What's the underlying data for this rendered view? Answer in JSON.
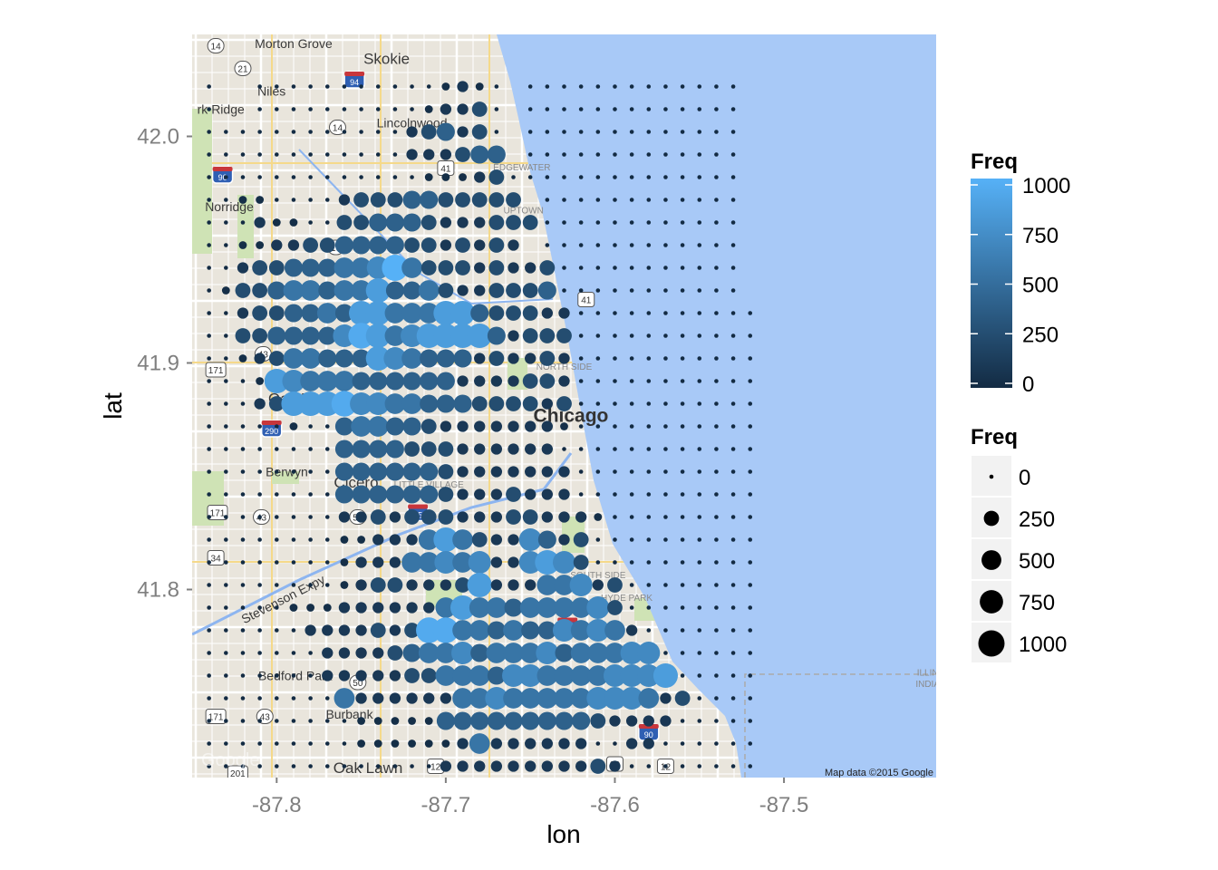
{
  "map": {
    "lon_range": [
      -87.85,
      -87.41
    ],
    "lat_range": [
      41.717,
      42.045
    ],
    "credit": "Map data ©2015 Google",
    "google_watermark": "Google",
    "places": [
      {
        "name": "Morton Grove",
        "lon": -87.79,
        "lat": 42.039,
        "class": "place"
      },
      {
        "name": "Skokie",
        "lon": -87.735,
        "lat": 42.032,
        "class": "place-big"
      },
      {
        "name": "Niles",
        "lon": -87.803,
        "lat": 42.018,
        "class": "place"
      },
      {
        "name": "rk Ridge",
        "lon": -87.833,
        "lat": 42.01,
        "class": "place"
      },
      {
        "name": "Lincolnwood",
        "lon": -87.72,
        "lat": 42.004,
        "class": "place"
      },
      {
        "name": "EDGEWATER",
        "lon": -87.655,
        "lat": 41.985,
        "class": "place-hood"
      },
      {
        "name": "Norridge",
        "lon": -87.828,
        "lat": 41.967,
        "class": "place"
      },
      {
        "name": "UPTOWN",
        "lon": -87.654,
        "lat": 41.966,
        "class": "place-hood"
      },
      {
        "name": "NORTH SIDE",
        "lon": -87.63,
        "lat": 41.897,
        "class": "place-hood"
      },
      {
        "name": "Oak Park",
        "lon": -87.786,
        "lat": 41.882,
        "class": "place-big"
      },
      {
        "name": "Chicago",
        "lon": -87.626,
        "lat": 41.874,
        "class": "place-city"
      },
      {
        "name": "Berwyn",
        "lon": -87.794,
        "lat": 41.85,
        "class": "place"
      },
      {
        "name": "Cicero",
        "lon": -87.753,
        "lat": 41.845,
        "class": "place-big"
      },
      {
        "name": "LITTLE VILLAGE",
        "lon": -87.71,
        "lat": 41.845,
        "class": "place-hood"
      },
      {
        "name": "SOUTH SIDE",
        "lon": -87.61,
        "lat": 41.805,
        "class": "place-hood"
      },
      {
        "name": "HYDE PARK",
        "lon": -87.593,
        "lat": 41.795,
        "class": "place-hood"
      },
      {
        "name": "Bedford Park",
        "lon": -87.789,
        "lat": 41.76,
        "class": "place"
      },
      {
        "name": "Burbank",
        "lon": -87.757,
        "lat": 41.743,
        "class": "place"
      },
      {
        "name": "Oak Lawn",
        "lon": -87.746,
        "lat": 41.719,
        "class": "place-big"
      },
      {
        "name": "Stevenson Expy",
        "lon": -87.795,
        "lat": 41.794,
        "class": "place",
        "rotate": -27
      },
      {
        "name": "ILLIN",
        "lon": -87.415,
        "lat": 41.762,
        "class": "place-hood"
      },
      {
        "name": "INDIA",
        "lon": -87.415,
        "lat": 41.757,
        "class": "place-hood"
      }
    ],
    "shields": [
      {
        "label": "14",
        "lon": -87.836,
        "lat": 42.04,
        "type": "state"
      },
      {
        "label": "21",
        "lon": -87.82,
        "lat": 42.03,
        "type": "state"
      },
      {
        "label": "94",
        "lon": -87.754,
        "lat": 42.025,
        "type": "interstate"
      },
      {
        "label": "14",
        "lon": -87.764,
        "lat": 42.004,
        "type": "state"
      },
      {
        "label": "41",
        "lon": -87.7,
        "lat": 41.986,
        "type": "us"
      },
      {
        "label": "90",
        "lon": -87.832,
        "lat": 41.983,
        "type": "interstate"
      },
      {
        "label": "19",
        "lon": -87.765,
        "lat": 41.951,
        "type": "state"
      },
      {
        "label": "41",
        "lon": -87.617,
        "lat": 41.928,
        "type": "us"
      },
      {
        "label": "43",
        "lon": -87.808,
        "lat": 41.904,
        "type": "state"
      },
      {
        "label": "171",
        "lon": -87.836,
        "lat": 41.897,
        "type": "us"
      },
      {
        "label": "290",
        "lon": -87.803,
        "lat": 41.871,
        "type": "interstate"
      },
      {
        "label": "171",
        "lon": -87.835,
        "lat": 41.834,
        "type": "us"
      },
      {
        "label": "43",
        "lon": -87.809,
        "lat": 41.832,
        "type": "state"
      },
      {
        "label": "50",
        "lon": -87.752,
        "lat": 41.832,
        "type": "state"
      },
      {
        "label": "55",
        "lon": -87.7165,
        "lat": 41.834,
        "type": "interstate"
      },
      {
        "label": "34",
        "lon": -87.836,
        "lat": 41.814,
        "type": "us"
      },
      {
        "label": "94",
        "lon": -87.628,
        "lat": 41.784,
        "type": "interstate"
      },
      {
        "label": "50",
        "lon": -87.752,
        "lat": 41.759,
        "type": "state"
      },
      {
        "label": "171",
        "lon": -87.836,
        "lat": 41.744,
        "type": "us"
      },
      {
        "label": "43",
        "lon": -87.807,
        "lat": 41.744,
        "type": "state"
      },
      {
        "label": "90",
        "lon": -87.58,
        "lat": 41.737,
        "type": "interstate"
      },
      {
        "label": "12",
        "lon": -87.706,
        "lat": 41.722,
        "type": "us"
      },
      {
        "label": "20",
        "lon": -87.6,
        "lat": 41.723,
        "type": "us"
      },
      {
        "label": "12",
        "lon": -87.57,
        "lat": 41.722,
        "type": "us"
      },
      {
        "label": "201",
        "lon": -87.823,
        "lat": 41.719,
        "type": "us"
      }
    ]
  },
  "axes": {
    "xlabel": "lon",
    "ylabel": "lat",
    "xticks": [
      -87.8,
      -87.7,
      -87.6,
      -87.5
    ],
    "xtick_labels": [
      "-87.8",
      "-87.7",
      "-87.6",
      "-87.5"
    ],
    "yticks": [
      41.8,
      41.9,
      42.0
    ],
    "ytick_labels": [
      "41.8",
      "41.9",
      "42.0"
    ]
  },
  "legend": {
    "color_title": "Freq",
    "color_labels": [
      "1000",
      "750",
      "500",
      "250",
      "0"
    ],
    "color_low": "#132B43",
    "color_high": "#56B1F7",
    "size_title": "Freq",
    "size_labels": [
      "0",
      "250",
      "500",
      "750",
      "1000"
    ]
  },
  "chart_data": {
    "type": "scatter",
    "xlabel": "lon",
    "ylabel": "lat",
    "xlim": [
      -87.85,
      -87.41
    ],
    "ylim": [
      41.717,
      42.045
    ],
    "grid": {
      "lon_start": -87.84,
      "lon_step": 0.01,
      "ncols": 33,
      "lat_start": 42.022,
      "lat_step": -0.01,
      "nrows": 31
    },
    "value_levels": {
      "a": 0,
      "b": 30,
      "c": 100,
      "d": 250,
      "e": 400,
      "f": 550,
      "g": 700,
      "h": 850,
      "i": 950,
      "j": 1000
    },
    "rows": [
      "a..aaaaaaaaaaabcba.aaaaaaaaaaaaa",
      "a..aaaaaaaaaabccda.aaaaaaaaaaaaa",
      "aaaaaaaaaaaacdecda.aaaaaaaaaaaaa",
      "aaaaaaaaaaaacccdee.aaaaaaaaaaaaa",
      "aaaaaaaaaaaaabbbcdaaaaaaaaaaaaaa",
      "aabbaaaacdddeeddddd.aaaaaaaaaaaa",
      "aaacbbaaddeeedcccdddaaaaaaaaaaaa",
      "aabbccddeeeeddcdcdc.aaaaaaaaaaaa",
      "aacddeeeffgjfdddcdccdaaaaaaaaaaa",
      "abddeffeffheefdccdddeaaaaaaaaaaa",
      "aacddeefehhfffhhedddccaaaaaaaaaaa",
      "aaddeeeegihfghhhhecdddaaaaaaaaaaa",
      "aabcdffeeehgfeeecdccdcaaaaaaaaaaa",
      "aaabhgfffeeeeeeccccddcaaaaaaaaaaa",
      "aaacdhhhiggffeeeddddcdaaaaaaaaaaa",
      "aaaaabaaeffeedcccccccbaaaaaaaaaaa",
      "aaaaaaaaeeeedddccccccaaaaaaaaaaaa",
      "aaaaaaaaeeeeeedcccccccaaaaaaaaaaa",
      "aaaaaaaaeeeeeedcccdcccaaaaaaaaaaa",
      "aaaaaaaaccdcdddcccddcccbaaaaaaaaa",
      "aaaaaaaabbcccfhfdccgecdaaaaaaaaaa",
      "aaaaaaaabcccffgfgccghgdaaaaaaaaaa",
      "aaaaaaaabcddcccdhcccffgcdaaaaaaaa",
      "aaaaabbbccccccfhffeffffgdaaaaaaaa",
      "aaaaaaccccdcdiiffefeegfgfcaaaaaaa",
      "aaaaaaaccccdeffgefffgefffggaaaaaa",
      "aaaaaaacccccddfffeggffffggghaaaaa",
      "aaaaaaaafccccccffgfffffgggfcdaaaa",
      "aaaaaaaaabbbbbeeeeeeeeedccccaaaaa",
      "aaaaaaaaabbbbbbcfccccccaaccaaaaaa",
      "aaaaaaaaaaaaaacccccccccdcaaaaaaaa"
    ]
  }
}
